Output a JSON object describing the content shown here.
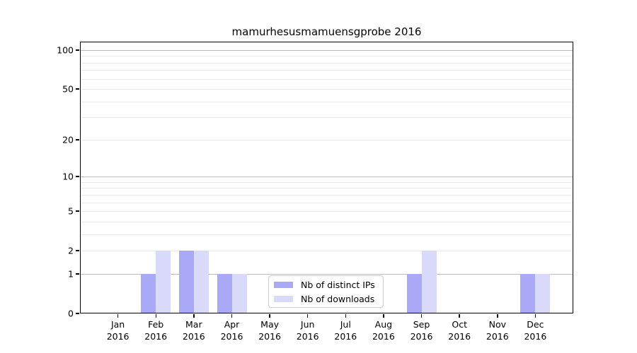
{
  "chart_data": {
    "type": "bar",
    "title": "mamurhesusmamuensgprobe 2016",
    "categories": [
      {
        "month": "Jan",
        "year": "2016"
      },
      {
        "month": "Feb",
        "year": "2016"
      },
      {
        "month": "Mar",
        "year": "2016"
      },
      {
        "month": "Apr",
        "year": "2016"
      },
      {
        "month": "May",
        "year": "2016"
      },
      {
        "month": "Jun",
        "year": "2016"
      },
      {
        "month": "Jul",
        "year": "2016"
      },
      {
        "month": "Aug",
        "year": "2016"
      },
      {
        "month": "Sep",
        "year": "2016"
      },
      {
        "month": "Oct",
        "year": "2016"
      },
      {
        "month": "Nov",
        "year": "2016"
      },
      {
        "month": "Dec",
        "year": "2016"
      }
    ],
    "series": [
      {
        "name": "Nb of distinct IPs",
        "color": "#a9a9f7",
        "values": [
          0,
          1,
          2,
          1,
          0,
          0,
          0,
          0,
          1,
          0,
          0,
          1
        ]
      },
      {
        "name": "Nb of downloads",
        "color": "#d9d9fa",
        "values": [
          0,
          2,
          2,
          1,
          0,
          0,
          0,
          0,
          2,
          0,
          0,
          1
        ]
      }
    ],
    "y_scale": "log10(1+y)",
    "ylim": [
      0,
      116
    ],
    "y_ticks": [
      0,
      1,
      2,
      5,
      10,
      20,
      50,
      100
    ],
    "grid": {
      "major_lines": [
        1,
        10,
        100
      ],
      "minor_lines": [
        2,
        3,
        4,
        5,
        6,
        7,
        8,
        9,
        20,
        30,
        40,
        50,
        60,
        70,
        80,
        90
      ],
      "major_color": "#bbbbbb",
      "minor_color": "#eaeaea"
    },
    "legend_position": "lower center"
  },
  "legend": {
    "items": [
      {
        "label": "Nb of distinct IPs",
        "color": "#a9a9f7"
      },
      {
        "label": "Nb of downloads",
        "color": "#d9d9fa"
      }
    ]
  },
  "colors": {
    "background": "#ffffff",
    "axis": "#000000",
    "legend_border": "#cccccc"
  }
}
